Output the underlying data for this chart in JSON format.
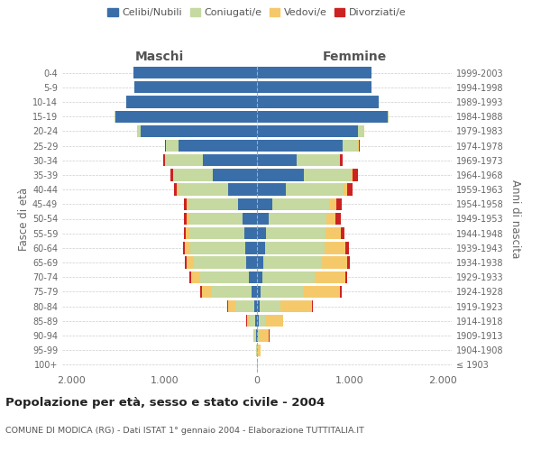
{
  "age_groups": [
    "100+",
    "95-99",
    "90-94",
    "85-89",
    "80-84",
    "75-79",
    "70-74",
    "65-69",
    "60-64",
    "55-59",
    "50-54",
    "45-49",
    "40-44",
    "35-39",
    "30-34",
    "25-29",
    "20-24",
    "15-19",
    "10-14",
    "5-9",
    "0-4"
  ],
  "birth_years": [
    "≤ 1903",
    "1904-1908",
    "1909-1913",
    "1914-1918",
    "1919-1923",
    "1924-1928",
    "1929-1933",
    "1934-1938",
    "1939-1943",
    "1944-1948",
    "1949-1953",
    "1954-1958",
    "1959-1963",
    "1964-1968",
    "1969-1973",
    "1974-1978",
    "1979-1983",
    "1984-1988",
    "1989-1993",
    "1994-1998",
    "1999-2003"
  ],
  "male": {
    "celibi": [
      2,
      2,
      5,
      15,
      30,
      60,
      90,
      115,
      130,
      135,
      160,
      200,
      310,
      480,
      580,
      850,
      1250,
      1530,
      1410,
      1320,
      1330
    ],
    "coniugati": [
      0,
      5,
      20,
      60,
      200,
      430,
      520,
      570,
      590,
      590,
      570,
      540,
      540,
      420,
      410,
      130,
      40,
      5,
      4,
      2,
      1
    ],
    "vedovi": [
      0,
      3,
      15,
      35,
      80,
      100,
      95,
      70,
      55,
      40,
      25,
      18,
      12,
      8,
      5,
      2,
      3,
      1,
      0,
      0,
      0
    ],
    "divorziati": [
      0,
      0,
      2,
      4,
      8,
      20,
      20,
      25,
      25,
      25,
      30,
      30,
      35,
      30,
      15,
      5,
      3,
      1,
      0,
      0,
      0
    ]
  },
  "female": {
    "nubili": [
      2,
      3,
      5,
      15,
      25,
      40,
      55,
      70,
      85,
      100,
      130,
      170,
      310,
      510,
      430,
      920,
      1090,
      1410,
      1310,
      1230,
      1230
    ],
    "coniugate": [
      0,
      5,
      25,
      70,
      230,
      470,
      570,
      620,
      640,
      640,
      620,
      620,
      620,
      500,
      450,
      170,
      60,
      8,
      5,
      2,
      1
    ],
    "vedove": [
      3,
      30,
      100,
      195,
      340,
      380,
      330,
      280,
      230,
      160,
      100,
      70,
      45,
      25,
      12,
      6,
      4,
      2,
      0,
      0,
      0
    ],
    "divorziate": [
      0,
      0,
      2,
      4,
      8,
      20,
      22,
      28,
      35,
      40,
      50,
      55,
      55,
      55,
      30,
      8,
      3,
      1,
      0,
      0,
      0
    ]
  },
  "colors": {
    "celibi": "#3a6ea8",
    "coniugati": "#c5d9a0",
    "vedovi": "#f5c96a",
    "divorziati": "#cc2222"
  },
  "xlim": 2100,
  "title": "Popolazione per età, sesso e stato civile - 2004",
  "subtitle": "COMUNE DI MODICA (RG) - Dati ISTAT 1° gennaio 2004 - Elaborazione TUTTITALIA.IT",
  "ylabel_left": "Fasce di età",
  "ylabel_right": "Anni di nascita",
  "xlabel_left": "Maschi",
  "xlabel_right": "Femmine",
  "legend_labels": [
    "Celibi/Nubili",
    "Coniugati/e",
    "Vedovi/e",
    "Divorziati/e"
  ],
  "tick_vals": [
    -2000,
    -1000,
    0,
    1000,
    2000
  ],
  "tick_labels": [
    "2.000",
    "1.000",
    "0",
    "1.000",
    "2.000"
  ]
}
